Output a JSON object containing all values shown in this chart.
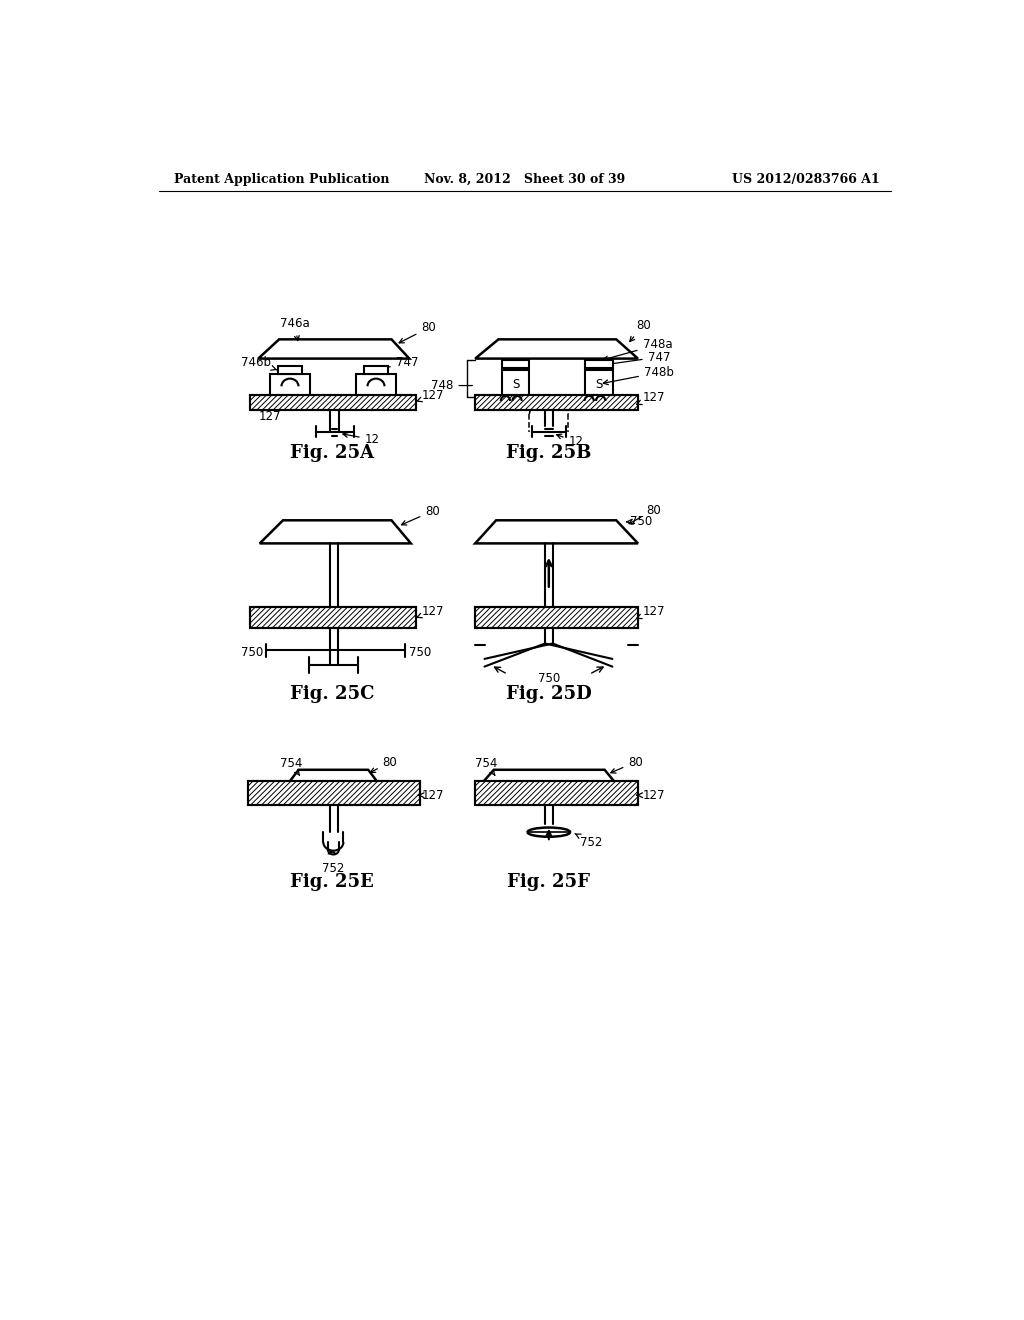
{
  "bg_color": "#ffffff",
  "header_left": "Patent Application Publication",
  "header_mid": "Nov. 8, 2012   Sheet 30 of 39",
  "header_right": "US 2012/0283766 A1"
}
